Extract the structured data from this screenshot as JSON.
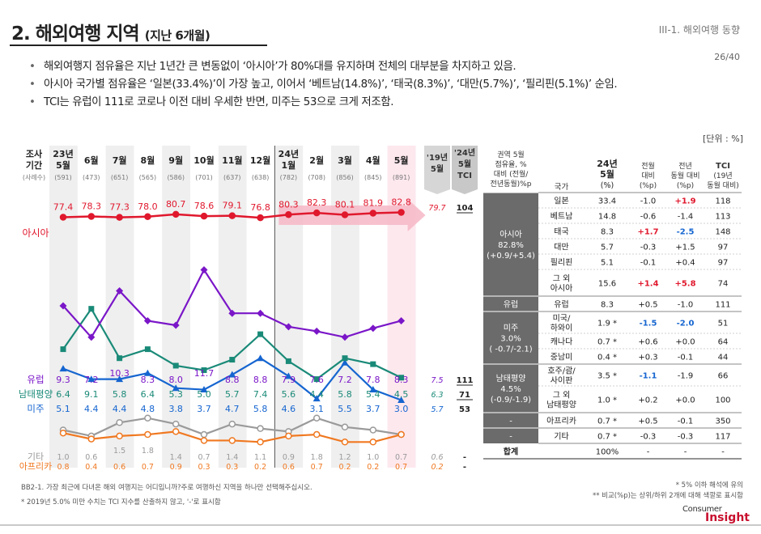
{
  "header": {
    "title_main": "2. 해외여행 지역",
    "title_sub": "(지난 6개월)",
    "section_label": "III-1. 해외여행 동향",
    "page_number": "26/40"
  },
  "bullets": [
    "해외여행지 점유율은 지난 1년간 큰 변동없이 ‘아시아’가 80%대를 유지하며 전체의 대부분을 차지하고 있음.",
    "아시아 국가별 점유율은 ‘일본(33.4%)’이 가장 높고, 이어서 ‘베트남(14.8%)’, ‘태국(8.3%)’, ‘대만(5.7%)’, ‘필리핀(5.1%)’ 순임.",
    "TCI는 유럽이 111로 코로나 이전 대비 우세한 반면, 미주는 53으로 크게 저조함."
  ],
  "unit_label": "[단위 : %]",
  "chart_data": {
    "type": "line",
    "row_header": {
      "line1": "조사",
      "line2": "기간",
      "line3": "(사례수)"
    },
    "periods": [
      {
        "year": "23년",
        "month": "5월",
        "n": "(591)"
      },
      {
        "year": "",
        "month": "6월",
        "n": "(473)"
      },
      {
        "year": "",
        "month": "7월",
        "n": "(651)"
      },
      {
        "year": "",
        "month": "8월",
        "n": "(565)"
      },
      {
        "year": "",
        "month": "9월",
        "n": "(586)"
      },
      {
        "year": "",
        "month": "10월",
        "n": "(701)"
      },
      {
        "year": "",
        "month": "11월",
        "n": "(637)"
      },
      {
        "year": "",
        "month": "12월",
        "n": "(638)"
      },
      {
        "year": "24년",
        "month": "1월",
        "n": "(782)"
      },
      {
        "year": "",
        "month": "2월",
        "n": "(708)"
      },
      {
        "year": "",
        "month": "3월",
        "n": "(856)"
      },
      {
        "year": "",
        "month": "4월",
        "n": "(845)"
      },
      {
        "year": "",
        "month": "5월",
        "n": "(891)"
      }
    ],
    "ref_header": {
      "line1": "'19년",
      "line2": "5월"
    },
    "tci_header": {
      "line1": "'24년",
      "line2": "5월",
      "line3": "TCI"
    },
    "series": [
      {
        "name": "아시아",
        "color": "#e0182d",
        "values": [
          77.4,
          78.3,
          77.3,
          78.0,
          80.7,
          78.6,
          79.1,
          76.8,
          80.3,
          82.3,
          80.1,
          81.9,
          82.8
        ],
        "labels": [
          "77.4",
          "78.3",
          "77.3",
          "78.0",
          "80.7",
          "78.6",
          "79.1",
          "76.8",
          "80.3",
          "82.3",
          "80.1",
          "81.9",
          "82.8"
        ],
        "ref": "79.7",
        "tci": "104"
      },
      {
        "name": "유럽",
        "color": "#7a16c8",
        "values": [
          9.3,
          7.2,
          10.3,
          8.3,
          8.0,
          11.7,
          8.8,
          8.8,
          7.9,
          7.6,
          7.2,
          7.8,
          8.3
        ],
        "labels": [
          "9.3",
          "7.2",
          "10.3",
          "8.3",
          "8.0",
          "11.7",
          "8.8",
          "8.8",
          "7.9",
          "7.6",
          "7.2",
          "7.8",
          "8.3"
        ],
        "ref": "7.5",
        "tci": "111"
      },
      {
        "name": "남태평양",
        "color": "#1a8a78",
        "values": [
          6.4,
          9.1,
          5.8,
          6.4,
          5.3,
          5.0,
          5.7,
          7.4,
          5.6,
          4.4,
          5.8,
          5.4,
          4.5
        ],
        "labels": [
          "6.4",
          "9.1",
          "5.8",
          "6.4",
          "5.3",
          "5.0",
          "5.7",
          "7.4",
          "5.6",
          "4.4",
          "5.8",
          "5.4",
          "4.5"
        ],
        "ref": "6.3",
        "tci": "71"
      },
      {
        "name": "미주",
        "color": "#1565d0",
        "values": [
          5.1,
          4.4,
          4.4,
          4.8,
          3.8,
          3.7,
          4.7,
          5.8,
          4.6,
          3.1,
          5.5,
          3.7,
          3.0
        ],
        "labels": [
          "5.1",
          "4.4",
          "4.4",
          "4.8",
          "3.8",
          "3.7",
          "4.7",
          "5.8",
          "4.6",
          "3.1",
          "5.5",
          "3.7",
          "3.0"
        ],
        "ref": "5.7",
        "tci": "53"
      },
      {
        "name": "기타",
        "color": "#9a9a9a",
        "values": [
          1.0,
          0.6,
          1.5,
          1.8,
          1.4,
          0.7,
          1.4,
          1.1,
          0.9,
          1.8,
          1.2,
          1.0,
          0.7
        ],
        "labels": [
          "1.0",
          "0.6",
          "1.5",
          "1.8",
          "1.4",
          "0.7",
          "1.4",
          "1.1",
          "0.9",
          "1.8",
          "1.2",
          "1.0",
          "0.7"
        ],
        "ref": "0.6",
        "tci": "-"
      },
      {
        "name": "아프리카",
        "color": "#f07820",
        "values": [
          0.8,
          0.4,
          0.6,
          0.7,
          0.9,
          0.3,
          0.3,
          0.2,
          0.6,
          0.7,
          0.2,
          0.2,
          0.7
        ],
        "labels": [
          "0.8",
          "0.4",
          "0.6",
          "0.7",
          "0.9",
          "0.3",
          "0.3",
          "0.2",
          "0.6",
          "0.7",
          "0.2",
          "0.2",
          "0.7"
        ],
        "ref": "0.2",
        "tci": "-"
      }
    ]
  },
  "table": {
    "headers": {
      "region": [
        "권역 5월",
        "점유율, %",
        "대비 (전월/",
        "전년동월)%p"
      ],
      "country": "국가",
      "share": [
        "24년",
        "5월",
        "(%)"
      ],
      "mom": [
        "전월",
        "대비",
        "(%p)"
      ],
      "yoy": [
        "전년",
        "동월 대비",
        "(%p)"
      ],
      "tci": [
        "TCI",
        "(19년",
        "동월 대비)"
      ]
    },
    "groups": [
      {
        "region": [
          "아시아",
          "82.8%",
          "(+0.9/+5.4)"
        ],
        "dark": true,
        "rows": [
          {
            "country": [
              "일본"
            ],
            "share": "33.4",
            "mom": "-1.0",
            "yoy": "+1.9",
            "tci": "118",
            "mom_color": "",
            "yoy_color": "#e0182d"
          },
          {
            "country": [
              "베트남"
            ],
            "share": "14.8",
            "mom": "-0.6",
            "yoy": "-1.4",
            "tci": "113",
            "mom_color": "",
            "yoy_color": ""
          },
          {
            "country": [
              "태국"
            ],
            "share": "8.3",
            "mom": "+1.7",
            "yoy": "-2.5",
            "tci": "148",
            "mom_color": "#e0182d",
            "yoy_color": "#1565d0"
          },
          {
            "country": [
              "대만"
            ],
            "share": "5.7",
            "mom": "-0.3",
            "yoy": "+1.5",
            "tci": "97",
            "mom_color": "",
            "yoy_color": ""
          },
          {
            "country": [
              "필리핀"
            ],
            "share": "5.1",
            "mom": "-0.1",
            "yoy": "+0.4",
            "tci": "97",
            "mom_color": "",
            "yoy_color": ""
          },
          {
            "country": [
              "그 외",
              "아시아"
            ],
            "share": "15.6",
            "mom": "+1.4",
            "yoy": "+5.8",
            "tci": "74",
            "mom_color": "#e0182d",
            "yoy_color": "#e0182d"
          }
        ]
      },
      {
        "region": [
          "유럽"
        ],
        "dark": true,
        "rows": [
          {
            "country": [
              "유럽"
            ],
            "share": "8.3",
            "mom": "+0.5",
            "yoy": "-1.0",
            "tci": "111",
            "mom_color": "",
            "yoy_color": ""
          }
        ]
      },
      {
        "region": [
          "미주",
          "3.0%",
          "( -0.7/-2.1)"
        ],
        "dark": true,
        "rows": [
          {
            "country": [
              "미국/",
              "하와이"
            ],
            "share": "1.9 *",
            "mom": "-1.5",
            "yoy": "-2.0",
            "tci": "51",
            "mom_color": "#1565d0",
            "yoy_color": "#1565d0"
          },
          {
            "country": [
              "캐나다"
            ],
            "share": "0.7 *",
            "mom": "+0.6",
            "yoy": "+0.0",
            "tci": "64",
            "mom_color": "",
            "yoy_color": ""
          },
          {
            "country": [
              "중남미"
            ],
            "share": "0.4 *",
            "mom": "+0.3",
            "yoy": "-0.1",
            "tci": "44",
            "mom_color": "",
            "yoy_color": ""
          }
        ]
      },
      {
        "region": [
          "남태평양",
          "4.5%",
          "(-0.9/-1.9)"
        ],
        "dark": true,
        "rows": [
          {
            "country": [
              "호주/괌/",
              "사이판"
            ],
            "share": "3.5 *",
            "mom": "-1.1",
            "yoy": "-1.9",
            "tci": "66",
            "mom_color": "#1565d0",
            "yoy_color": ""
          },
          {
            "country": [
              "그 외",
              "남태평양"
            ],
            "share": "1.0 *",
            "mom": "+0.2",
            "yoy": "+0.0",
            "tci": "100",
            "mom_color": "",
            "yoy_color": ""
          }
        ]
      },
      {
        "region": [
          "-"
        ],
        "dark": true,
        "rows": [
          {
            "country": [
              "아프리카"
            ],
            "share": "0.7 *",
            "mom": "+0.5",
            "yoy": "-0.1",
            "tci": "350",
            "mom_color": "",
            "yoy_color": ""
          }
        ]
      },
      {
        "region": [
          "-"
        ],
        "dark": true,
        "rows": [
          {
            "country": [
              "기타"
            ],
            "share": "0.7 *",
            "mom": "-0.3",
            "yoy": "-0.3",
            "tci": "117",
            "mom_color": "",
            "yoy_color": ""
          }
        ]
      },
      {
        "region": [
          "합계"
        ],
        "dark": false,
        "rows": [
          {
            "country": [
              ""
            ],
            "share": "100%",
            "mom": "-",
            "yoy": "-",
            "tci": "-",
            "mom_color": "",
            "yoy_color": ""
          }
        ]
      }
    ]
  },
  "footnotes": {
    "source": "BB2-1. 가장 최근에 다녀온 해외 여행지는 어디입니까?주로 여행하신 지역을 하나만 선택해주십시오.",
    "tci_note": "* 2019년 5.0% 미만 수치는 TCI 지수를 산출하지 않고, '-'로 표시함",
    "small_base": "* 5% 이하 해석에 유의",
    "stat_sig": "** 비교(%p)는 상위/하위 2개에 대해 색깔로 표시함"
  },
  "logo": {
    "line1": "Consumer",
    "line2": "Insight"
  }
}
